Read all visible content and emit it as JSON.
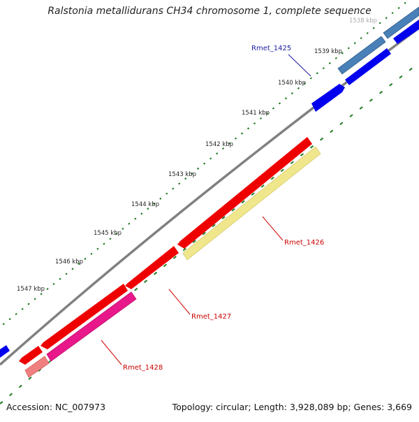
{
  "title": "Ralstonia metallidurans CH34 chromosome 1, complete sequence",
  "accession": "Accession: NC_007973",
  "summary": "Topology: circular; Length: 3,928,089 bp; Genes: 3,669",
  "ticks": [
    "1538 kbp",
    "1539 kbp",
    "1540 kbp",
    "1541 kbp",
    "1542 kbp",
    "1543 kbp",
    "1544 kbp",
    "1545 kbp",
    "1546 kbp",
    "1547 kbp"
  ],
  "gene_labels": [
    {
      "name": "Rmet_1425",
      "color": "#1a1aa0"
    },
    {
      "name": "Rmet_1426",
      "color": "#cc0000"
    },
    {
      "name": "Rmet_1427",
      "color": "#cc0000"
    },
    {
      "name": "Rmet_1428",
      "color": "#cc0000"
    }
  ],
  "colors": {
    "backbone": "#808080",
    "tick_dots": "#1f7a1f",
    "forward_cds": "#0000ee",
    "forward_cds_alt": "#4a80b8",
    "reverse_cds": "#ee0000",
    "reverse_product_yellow": "#f0e68c",
    "reverse_product_pink": "#e8188a",
    "reverse_product_salmon": "#f08080"
  }
}
